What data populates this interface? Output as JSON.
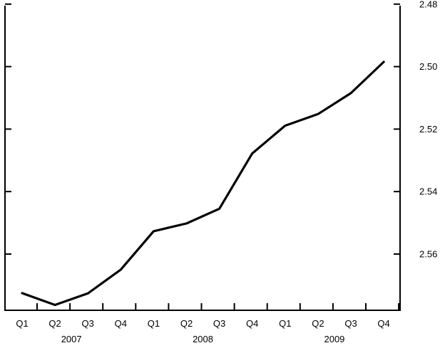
{
  "chart_data": {
    "type": "line",
    "categories": [
      "Q1",
      "Q2",
      "Q3",
      "Q4",
      "Q1",
      "Q2",
      "Q3",
      "Q4",
      "Q1",
      "Q2",
      "Q3",
      "Q4"
    ],
    "year_groups": [
      {
        "label": "2007",
        "start": 0,
        "end": 3
      },
      {
        "label": "2008",
        "start": 4,
        "end": 7
      },
      {
        "label": "2009",
        "start": 8,
        "end": 11
      }
    ],
    "series": [
      {
        "values": [
          2.5725,
          2.5763,
          2.5726,
          2.565,
          2.5527,
          2.5502,
          2.5455,
          2.5278,
          2.5189,
          2.5152,
          2.5085,
          2.4985
        ]
      }
    ],
    "y_axis": {
      "position": "right",
      "inverted": true,
      "range": [
        2.4805,
        2.578
      ],
      "ticks": [
        2.48,
        2.5,
        2.52,
        2.54,
        2.56
      ],
      "tick_labels": [
        "2.48",
        "2.50",
        "2.52",
        "2.54",
        "2.56"
      ]
    },
    "title": "",
    "xlabel": "",
    "ylabel": "",
    "grid": false,
    "colors": {
      "line": "#000000",
      "axis": "#000000"
    }
  }
}
